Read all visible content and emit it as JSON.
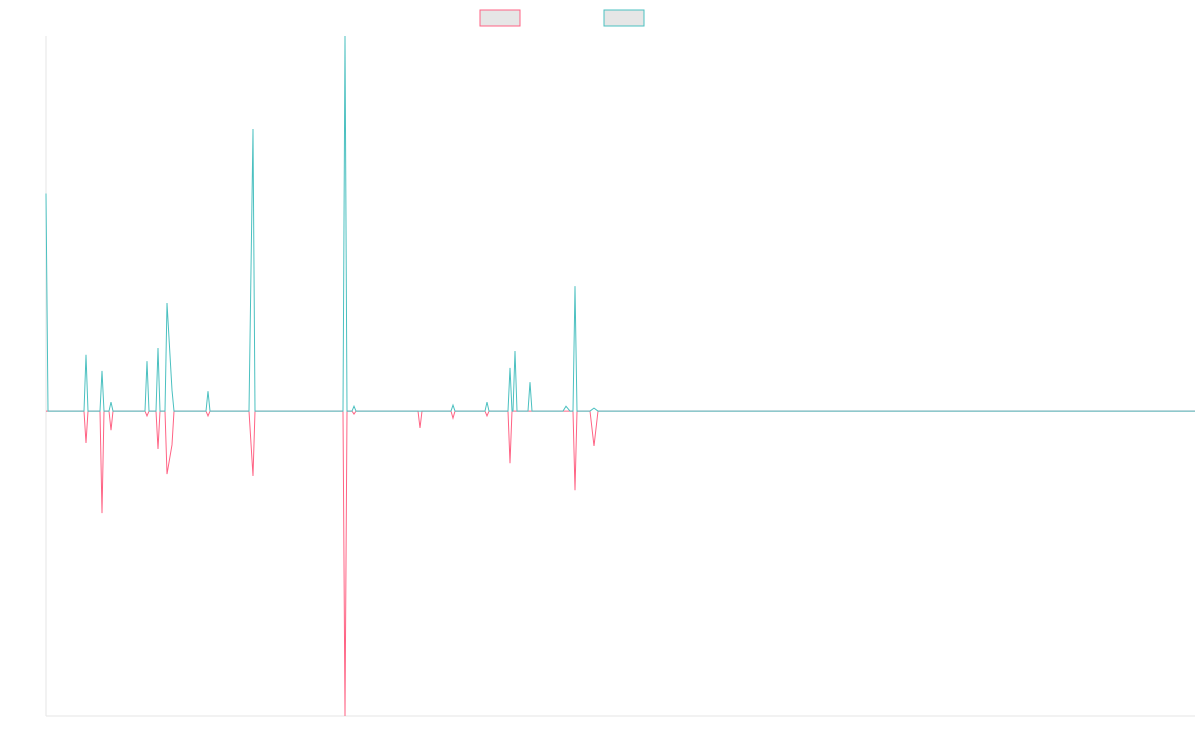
{
  "chart_data": {
    "type": "line",
    "x": [
      0,
      2,
      38,
      40,
      42,
      54,
      56,
      58,
      63,
      65,
      67,
      99,
      101,
      103,
      110,
      112,
      114,
      119,
      121,
      126,
      128,
      160,
      162,
      164,
      203,
      207,
      209,
      297,
      299,
      301,
      306,
      308,
      310,
      372,
      374,
      376,
      405,
      407,
      409,
      439,
      441,
      443,
      462,
      464,
      466,
      467,
      469,
      471,
      482,
      484,
      486,
      517,
      520,
      524,
      527,
      529,
      531,
      544,
      548,
      552,
      1149
    ],
    "series": [
      {
        "color": "#ff6384",
        "values": [
          0,
          0,
          0,
          -8.5,
          0,
          0,
          -27.2,
          0,
          0,
          -5.1,
          0,
          0,
          -1.3,
          0,
          0,
          -10.1,
          0,
          0,
          -16.8,
          -9,
          0,
          0,
          -1.3,
          0,
          0,
          -17.3,
          0,
          0,
          -81.3,
          0,
          0,
          -0.8,
          0,
          0,
          -4.5,
          0,
          0,
          -1.9,
          0,
          0,
          -1.3,
          0,
          0,
          -13.9,
          0,
          0,
          0,
          0,
          0,
          0,
          0,
          0,
          0,
          0,
          0,
          -21.1,
          0,
          0,
          -9.3,
          0,
          0
        ]
      },
      {
        "color": "#4bc0c0",
        "values": [
          58,
          0,
          0,
          15,
          0,
          0,
          10.7,
          0,
          0,
          2.4,
          0,
          0,
          13.3,
          0,
          0,
          16.8,
          0,
          0,
          28.8,
          5.6,
          0,
          0,
          5.3,
          0,
          0,
          75.2,
          0,
          0,
          100,
          0,
          0,
          1.3,
          0,
          0,
          0,
          0,
          0,
          1.6,
          0,
          0,
          2.4,
          0,
          0,
          11.5,
          0,
          0,
          16,
          0,
          0,
          7.7,
          0,
          0,
          1.3,
          0,
          0,
          33.3,
          0,
          0,
          0.8,
          0,
          0
        ]
      }
    ],
    "xlim": [
      0,
      1149
    ],
    "ylim": [
      -81.3,
      100
    ]
  }
}
